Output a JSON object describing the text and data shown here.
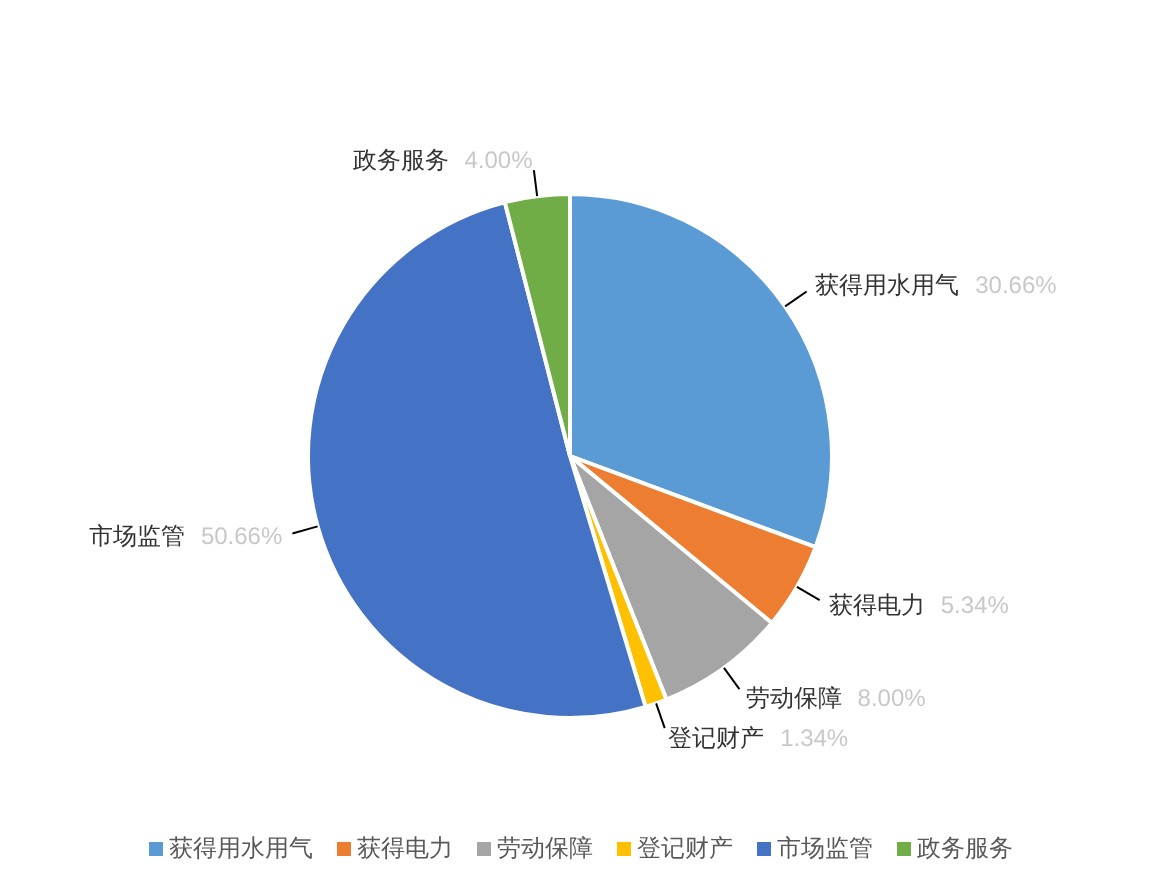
{
  "chart_data": {
    "type": "pie",
    "categories": [
      "获得用水用气",
      "获得电力",
      "劳动保障",
      "登记财产",
      "市场监管",
      "政务服务"
    ],
    "values": [
      30.66,
      5.34,
      8.0,
      1.34,
      50.66,
      4.0
    ],
    "colors": [
      "#5b9bd5",
      "#ed7d31",
      "#a5a5a5",
      "#ffc000",
      "#4472c4",
      "#70ad47"
    ],
    "value_labels": [
      "30.66%",
      "5.34%",
      "8.00%",
      "1.34%",
      "50.66%",
      "4.00%"
    ],
    "legend": "bottom"
  }
}
